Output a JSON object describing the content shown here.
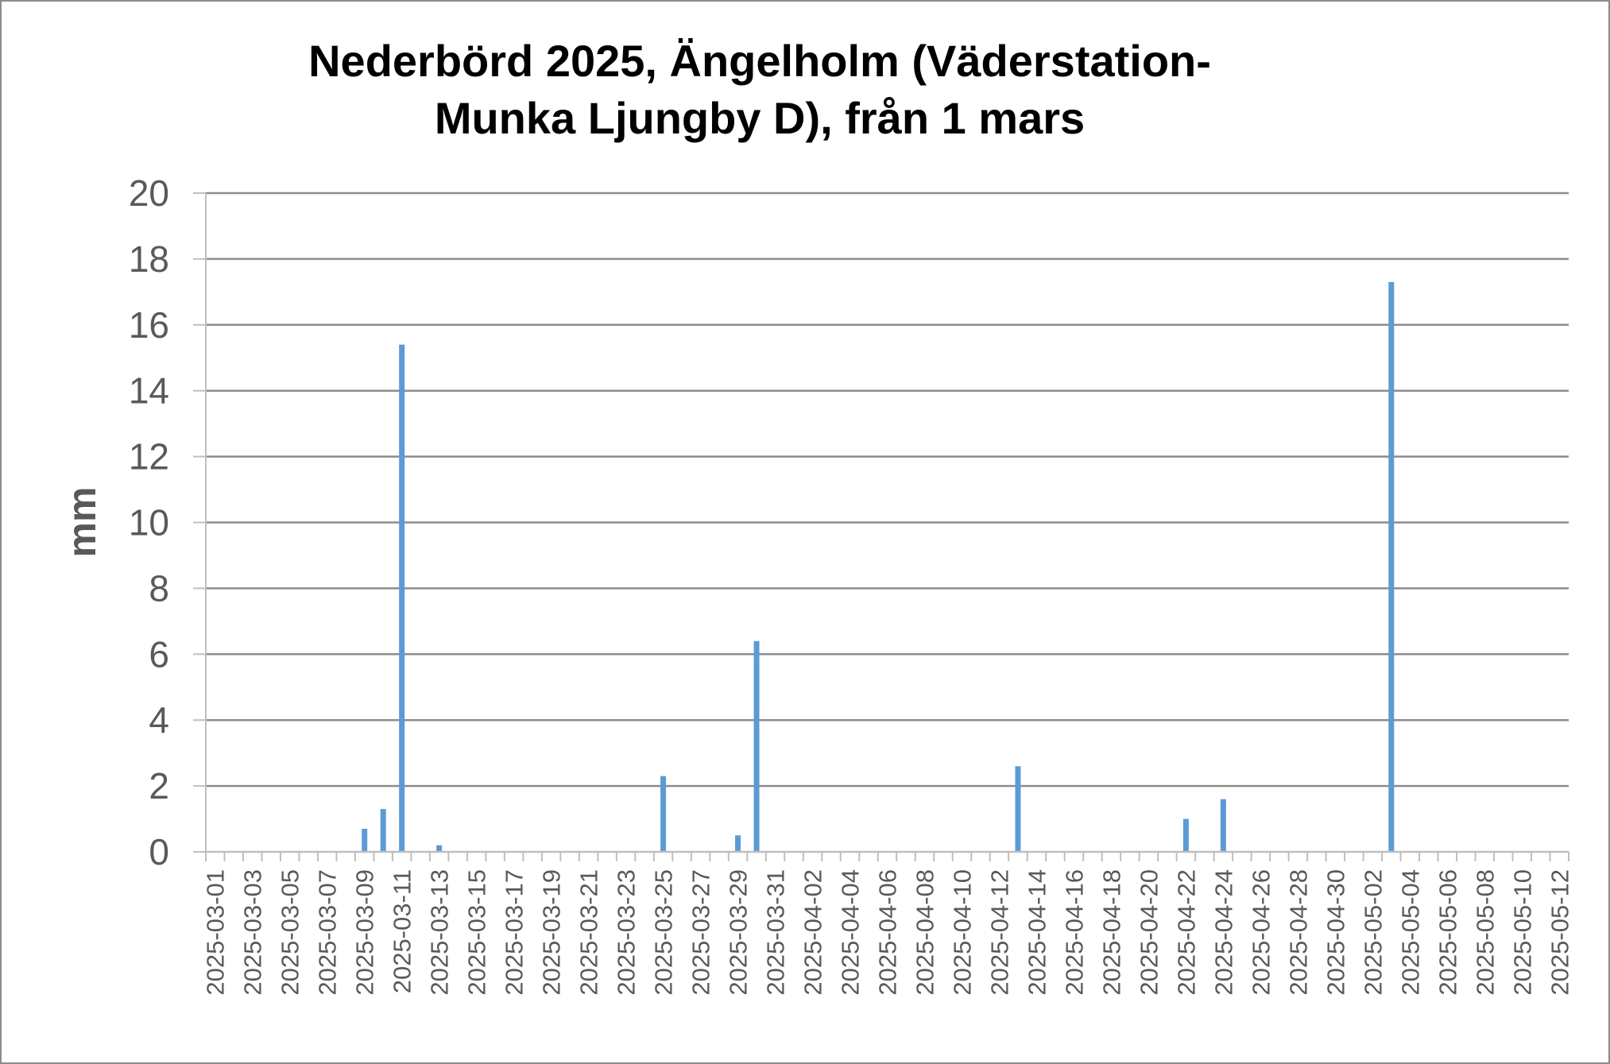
{
  "chart_data": {
    "type": "bar",
    "title_lines": [
      "Nederbörd 2025, Ängelholm (Väderstation-",
      "Munka Ljungby D), från 1 mars"
    ],
    "xlabel": "",
    "ylabel": "mm",
    "ylim": [
      0,
      20
    ],
    "yticks": [
      0,
      2,
      4,
      6,
      8,
      10,
      12,
      14,
      16,
      18,
      20
    ],
    "grid": true,
    "legend": "none",
    "x_start": "2025-03-01",
    "x_end": "2025-05-12",
    "x_tick_labels": [
      "2025-03-01",
      "2025-03-03",
      "2025-03-05",
      "2025-03-07",
      "2025-03-09",
      "2025-03-11",
      "2025-03-13",
      "2025-03-15",
      "2025-03-17",
      "2025-03-19",
      "2025-03-21",
      "2025-03-23",
      "2025-03-25",
      "2025-03-27",
      "2025-03-29",
      "2025-03-31",
      "2025-04-02",
      "2025-04-04",
      "2025-04-06",
      "2025-04-08",
      "2025-04-10",
      "2025-04-12",
      "2025-04-14",
      "2025-04-16",
      "2025-04-18",
      "2025-04-20",
      "2025-04-22",
      "2025-04-24",
      "2025-04-26",
      "2025-04-28",
      "2025-04-30",
      "2025-05-02",
      "2025-05-04",
      "2025-05-06",
      "2025-05-08",
      "2025-05-10",
      "2025-05-12"
    ],
    "points": [
      {
        "date": "2025-03-09",
        "value": 0.7
      },
      {
        "date": "2025-03-10",
        "value": 1.3
      },
      {
        "date": "2025-03-11",
        "value": 15.4
      },
      {
        "date": "2025-03-13",
        "value": 0.2
      },
      {
        "date": "2025-03-25",
        "value": 2.3
      },
      {
        "date": "2025-03-29",
        "value": 0.5
      },
      {
        "date": "2025-03-30",
        "value": 6.4
      },
      {
        "date": "2025-04-13",
        "value": 2.6
      },
      {
        "date": "2025-04-22",
        "value": 1.0
      },
      {
        "date": "2025-04-24",
        "value": 1.6
      },
      {
        "date": "2025-05-03",
        "value": 17.3
      }
    ],
    "colors": {
      "bar": "#5b9bd5",
      "grid": "#8c8c8c",
      "axis": "#bfbfbf",
      "text": "#595959"
    }
  }
}
